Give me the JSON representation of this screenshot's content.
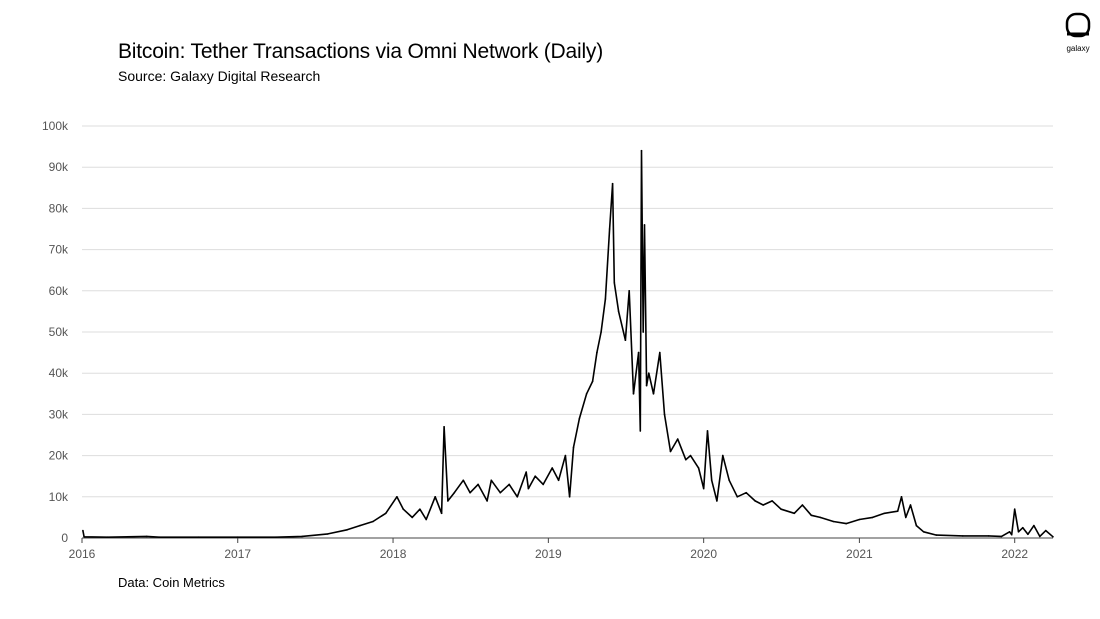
{
  "header": {
    "title": "Bitcoin: Tether Transactions via Omni Network (Daily)",
    "subtitle": "Source: Galaxy Digital Research"
  },
  "footer": {
    "note": "Data: Coin Metrics"
  },
  "logo": {
    "icon": "galaxy-logo-icon",
    "text": "galaxy"
  },
  "colors": {
    "line": "#000000",
    "grid": "#dddddd",
    "axis": "#444444",
    "tick_text": "#555555"
  },
  "chart_data": {
    "type": "line",
    "title": "Bitcoin: Tether Transactions via Omni Network (Daily)",
    "subtitle": "Source: Galaxy Digital Research",
    "xlabel": "",
    "ylabel": "",
    "ylim": [
      0,
      100000
    ],
    "xlim": [
      "2016-01-01",
      "2022-04-01"
    ],
    "grid": true,
    "legend": "none",
    "y_ticks": [
      {
        "value": 0,
        "label": "0"
      },
      {
        "value": 10000,
        "label": "10k"
      },
      {
        "value": 20000,
        "label": "20k"
      },
      {
        "value": 30000,
        "label": "30k"
      },
      {
        "value": 40000,
        "label": "40k"
      },
      {
        "value": 50000,
        "label": "50k"
      },
      {
        "value": 60000,
        "label": "60k"
      },
      {
        "value": 70000,
        "label": "70k"
      },
      {
        "value": 80000,
        "label": "80k"
      },
      {
        "value": 90000,
        "label": "90k"
      },
      {
        "value": 100000,
        "label": "100k"
      }
    ],
    "x_ticks": [
      {
        "value": "2016-01-01",
        "label": "2016"
      },
      {
        "value": "2017-01-01",
        "label": "2017"
      },
      {
        "value": "2018-01-01",
        "label": "2018"
      },
      {
        "value": "2019-01-01",
        "label": "2019"
      },
      {
        "value": "2020-01-01",
        "label": "2020"
      },
      {
        "value": "2021-01-01",
        "label": "2021"
      },
      {
        "value": "2022-01-01",
        "label": "2022"
      }
    ],
    "series": [
      {
        "x": [
          "2016-01-03",
          "2016-01-06",
          "2016-03-01",
          "2016-06-01",
          "2016-07-01",
          "2016-10-01",
          "2017-01-01",
          "2017-04-01",
          "2017-06-01",
          "2017-08-01",
          "2017-09-15",
          "2017-10-15",
          "2017-11-15",
          "2017-12-15",
          "2018-01-10",
          "2018-01-25",
          "2018-02-15",
          "2018-03-05",
          "2018-03-20",
          "2018-04-10",
          "2018-04-25",
          "2018-05-01",
          "2018-05-10",
          "2018-05-25",
          "2018-06-15",
          "2018-07-01",
          "2018-07-20",
          "2018-08-10",
          "2018-08-20",
          "2018-09-10",
          "2018-10-01",
          "2018-10-20",
          "2018-11-10",
          "2018-11-15",
          "2018-12-01",
          "2018-12-20",
          "2019-01-10",
          "2019-01-25",
          "2019-02-10",
          "2019-02-20",
          "2019-03-01",
          "2019-03-15",
          "2019-04-01",
          "2019-04-15",
          "2019-04-25",
          "2019-05-05",
          "2019-05-15",
          "2019-05-25",
          "2019-06-01",
          "2019-06-05",
          "2019-06-15",
          "2019-07-01",
          "2019-07-10",
          "2019-07-20",
          "2019-08-01",
          "2019-08-05",
          "2019-08-08",
          "2019-08-12",
          "2019-08-15",
          "2019-08-20",
          "2019-08-25",
          "2019-09-05",
          "2019-09-20",
          "2019-10-01",
          "2019-10-15",
          "2019-11-01",
          "2019-11-20",
          "2019-12-01",
          "2019-12-20",
          "2020-01-01",
          "2020-01-10",
          "2020-01-20",
          "2020-02-01",
          "2020-02-15",
          "2020-03-01",
          "2020-03-20",
          "2020-04-10",
          "2020-05-01",
          "2020-05-20",
          "2020-06-10",
          "2020-07-01",
          "2020-08-01",
          "2020-08-20",
          "2020-09-10",
          "2020-10-01",
          "2020-11-01",
          "2020-12-01",
          "2021-01-01",
          "2021-02-01",
          "2021-03-01",
          "2021-04-01",
          "2021-04-10",
          "2021-04-20",
          "2021-05-01",
          "2021-05-15",
          "2021-06-01",
          "2021-07-01",
          "2021-09-01",
          "2021-11-01",
          "2021-12-01",
          "2021-12-20",
          "2021-12-25",
          "2022-01-01",
          "2022-01-10",
          "2022-01-20",
          "2022-02-01",
          "2022-02-15",
          "2022-03-01",
          "2022-03-15",
          "2022-04-01"
        ],
        "y": [
          1800,
          300,
          200,
          400,
          200,
          200,
          200,
          200,
          400,
          1000,
          2000,
          3000,
          4000,
          6000,
          10000,
          7000,
          5000,
          7000,
          4500,
          10000,
          6000,
          27000,
          9000,
          11000,
          14000,
          11000,
          13000,
          9000,
          14000,
          11000,
          13000,
          10000,
          16000,
          12000,
          15000,
          13000,
          17000,
          14000,
          20000,
          10000,
          22000,
          29000,
          35000,
          38000,
          45000,
          50000,
          58000,
          75000,
          86000,
          62000,
          55000,
          48000,
          60000,
          35000,
          45000,
          26000,
          94000,
          50000,
          76000,
          37000,
          40000,
          35000,
          45000,
          30000,
          21000,
          24000,
          19000,
          20000,
          17000,
          12000,
          26000,
          14000,
          9000,
          20000,
          14000,
          10000,
          11000,
          9000,
          8000,
          9000,
          7000,
          6000,
          8000,
          5500,
          5000,
          4000,
          3500,
          4500,
          5000,
          6000,
          6500,
          10000,
          5000,
          8000,
          3000,
          1500,
          700,
          500,
          500,
          400,
          1500,
          800,
          7000,
          1500,
          2500,
          900,
          3000,
          400,
          1800,
          300
        ]
      }
    ]
  }
}
